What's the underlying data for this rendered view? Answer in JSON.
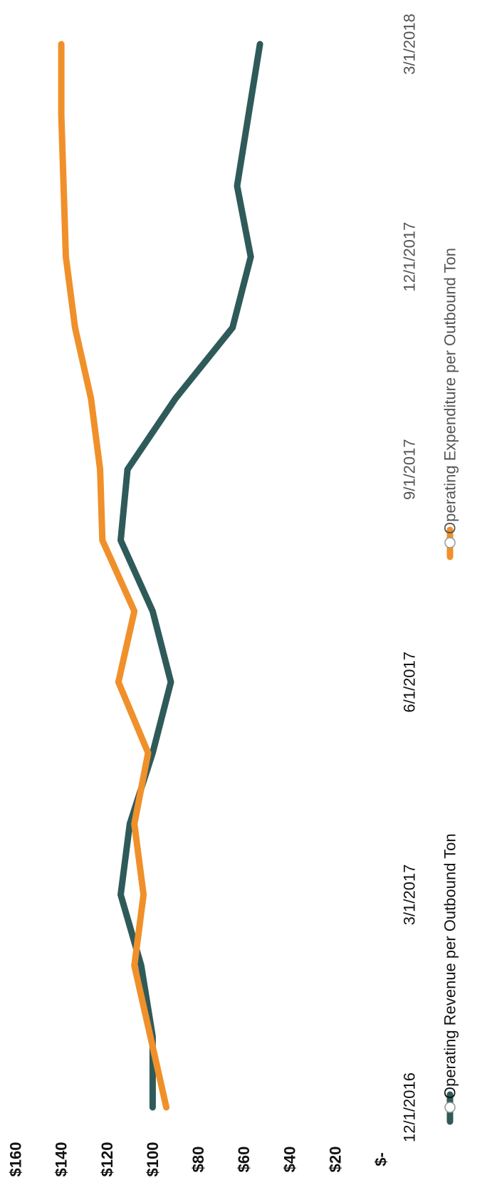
{
  "chart_data": {
    "type": "line",
    "title": "",
    "xlabel": "",
    "ylabel": "",
    "ylim": [
      0,
      160
    ],
    "y_ticks": [
      "$-",
      "$20",
      "$40",
      "$60",
      "$80",
      "$100",
      "$120",
      "$140",
      "$160"
    ],
    "x": [
      "12/1/2016",
      "1/1/2017",
      "2/1/2017",
      "3/1/2017",
      "4/1/2017",
      "5/1/2017",
      "6/1/2017",
      "7/1/2017",
      "8/1/2017",
      "9/1/2017",
      "10/1/2017",
      "11/1/2017",
      "12/1/2017",
      "1/1/2018",
      "2/1/2018",
      "3/1/2018"
    ],
    "x_ticks": [
      "12/1/2016",
      "3/1/2017",
      "6/1/2017",
      "9/1/2017",
      "12/1/2017",
      "3/1/2018"
    ],
    "series": [
      {
        "name": "Operating Revenue per Outbound Ton",
        "color": "#2f5a5a",
        "values": [
          100,
          100,
          105,
          114,
          110,
          100,
          92,
          100,
          114,
          111,
          90,
          65,
          57,
          63,
          58,
          53
        ]
      },
      {
        "name": "Operating Expenditure per Outbound Ton",
        "color": "#f0902a",
        "values": [
          94,
          101,
          108,
          104,
          108,
          102,
          115,
          108,
          122,
          123,
          127,
          134,
          138,
          139,
          140,
          140
        ]
      }
    ],
    "legend_position": "bottom",
    "grid": false
  }
}
